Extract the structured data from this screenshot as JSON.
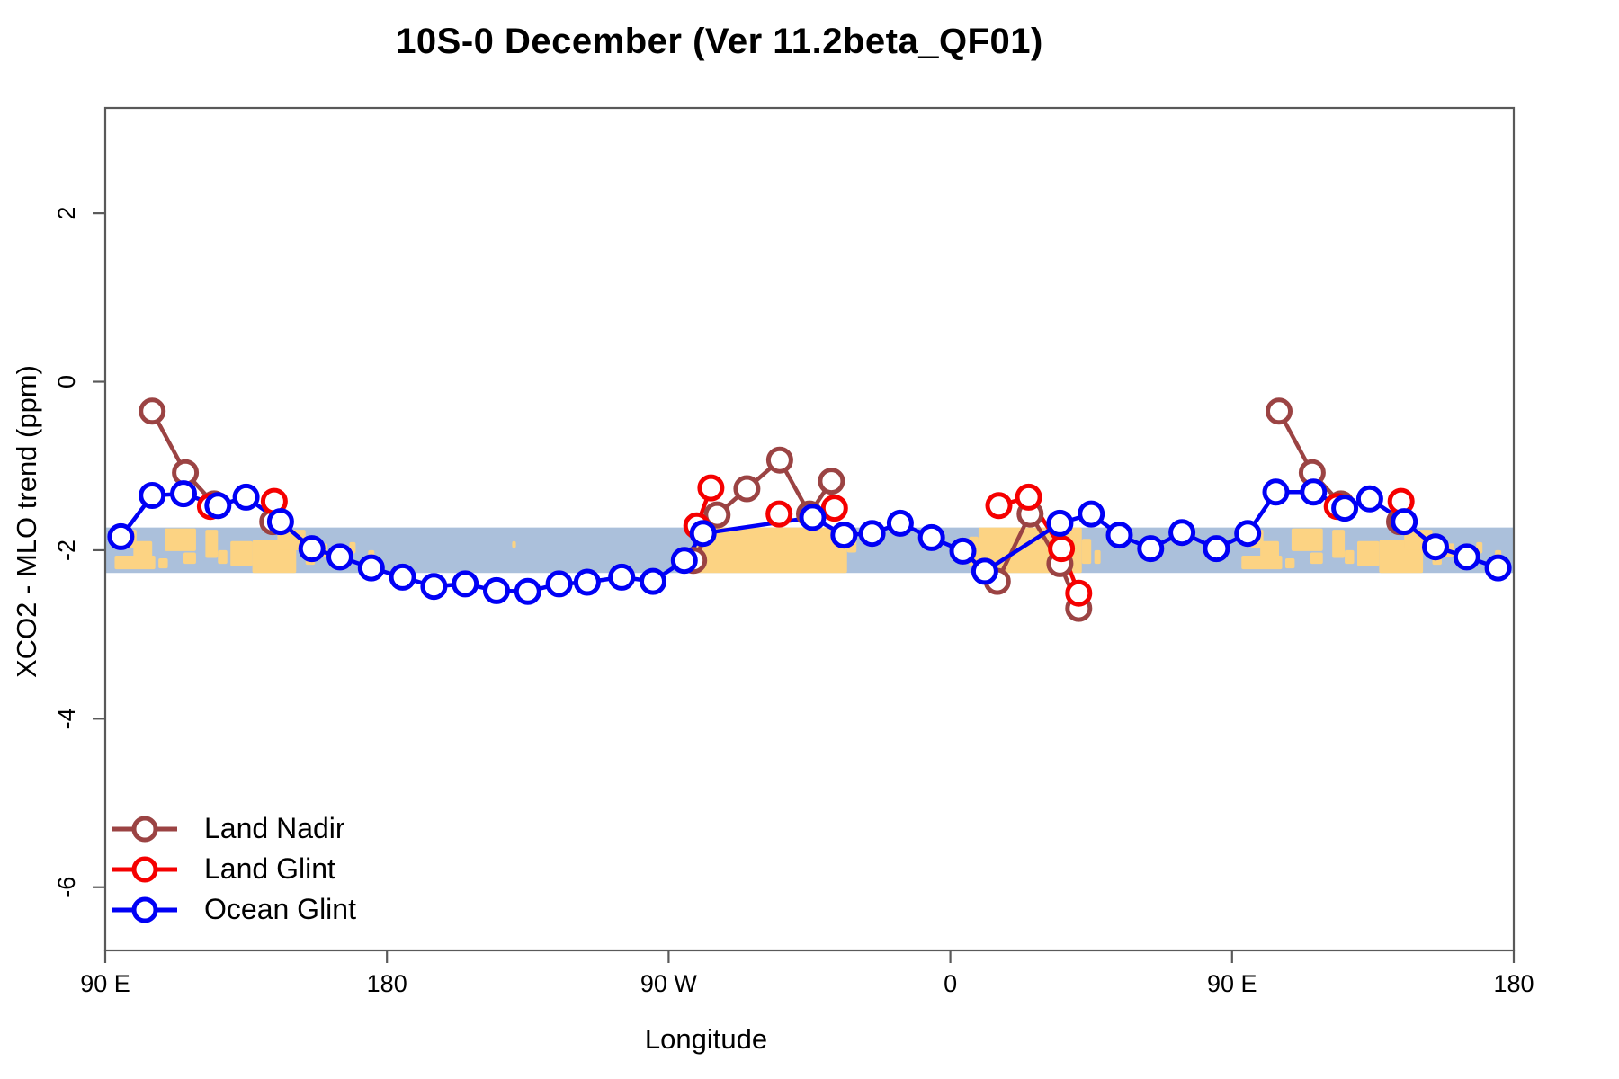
{
  "title": "10S-0 December (Ver 11.2beta_QF01)",
  "legend": {
    "items": [
      "Land Nadir",
      "Land Glint",
      "Ocean Glint"
    ]
  },
  "chart_data": {
    "type": "line",
    "title": "10S-0 December (Ver 11.2beta_QF01)",
    "xlabel": "Longitude",
    "ylabel": "XCO2 - MLO trend (ppm)",
    "x_axis_note": "degrees eastward from 90E, wrapping the globe (0-450)",
    "xlim": [
      0,
      450
    ],
    "ylim": [
      -6.75,
      3.25
    ],
    "grid": false,
    "legend_position": "bottom-left-inside",
    "x_ticks": [
      {
        "pos": 0,
        "label": "90 E"
      },
      {
        "pos": 90,
        "label": "180"
      },
      {
        "pos": 180,
        "label": "90 W"
      },
      {
        "pos": 270,
        "label": "0"
      },
      {
        "pos": 360,
        "label": "90 E"
      },
      {
        "pos": 450,
        "label": "180"
      }
    ],
    "y_ticks": [
      {
        "pos": 2,
        "label": "2"
      },
      {
        "pos": 0,
        "label": "0"
      },
      {
        "pos": -2,
        "label": "-2"
      },
      {
        "pos": -4,
        "label": "-4"
      },
      {
        "pos": -6,
        "label": "-6"
      }
    ],
    "map_band": {
      "value_top": -1.73,
      "value_bottom": -2.27,
      "ocean_color": "#ABC0DB",
      "land_color": "#FCD383",
      "repeat_offset": 360,
      "patches": [
        {
          "x": 6,
          "w": 4,
          "yf": 0.05,
          "hf": 0.4,
          "r": 1
        },
        {
          "x": 9,
          "w": 6,
          "yf": 0.3,
          "hf": 0.45,
          "r": 1
        },
        {
          "x": 3,
          "w": 13,
          "yf": 0.62,
          "hf": 0.3,
          "r": 1
        },
        {
          "x": 17,
          "w": 3,
          "yf": 0.68,
          "hf": 0.22,
          "r": 1
        },
        {
          "x": 19,
          "w": 10,
          "yf": 0.02,
          "hf": 0.5,
          "r": 1
        },
        {
          "x": 25,
          "w": 4,
          "yf": 0.55,
          "hf": 0.25,
          "r": 1
        },
        {
          "x": 32,
          "w": 4,
          "yf": 0.05,
          "hf": 0.62,
          "r": 1
        },
        {
          "x": 36,
          "w": 3,
          "yf": 0.5,
          "hf": 0.3,
          "r": 1
        },
        {
          "x": 40,
          "w": 7,
          "yf": 0.3,
          "hf": 0.55,
          "r": 1
        },
        {
          "x": 47,
          "w": 14,
          "yf": 0.28,
          "hf": 0.72,
          "r": 1
        },
        {
          "x": 55,
          "w": 9,
          "yf": 0.05,
          "hf": 0.45,
          "r": 1
        },
        {
          "x": 64,
          "w": 3,
          "yf": 0.5,
          "hf": 0.32,
          "r": 1
        },
        {
          "x": 68,
          "w": 3,
          "yf": 0.35,
          "hf": 0.3,
          "r": 1
        },
        {
          "x": 72,
          "w": 2,
          "yf": 0.55,
          "hf": 0.25,
          "r": 1
        },
        {
          "x": 78,
          "w": 2,
          "yf": 0.32,
          "hf": 0.25,
          "r": 1
        },
        {
          "x": 84,
          "w": 2,
          "yf": 0.5,
          "hf": 0.2,
          "r": 1
        },
        {
          "x": 130,
          "w": 1.2,
          "yf": 0.3,
          "hf": 0.15,
          "r": 0
        },
        {
          "x": 189,
          "w": 48,
          "yf": 0,
          "hf": 1,
          "r": 0
        },
        {
          "x": 237,
          "w": 3,
          "yf": 0,
          "hf": 0.55,
          "r": 0
        },
        {
          "x": 276,
          "w": 3,
          "yf": 0.2,
          "hf": 0.65,
          "r": 0
        },
        {
          "x": 279,
          "w": 33,
          "yf": 0,
          "hf": 1,
          "r": 0
        },
        {
          "x": 312,
          "w": 3,
          "yf": 0.25,
          "hf": 0.55,
          "r": 0
        },
        {
          "x": 316,
          "w": 2,
          "yf": 0.5,
          "hf": 0.3,
          "r": 0
        }
      ]
    },
    "series": [
      {
        "name": "Land Nadir",
        "color": "#9B4343",
        "marker": "open-circle",
        "segments": [
          [
            [
              15,
              -0.35
            ],
            [
              25.6,
              -1.08
            ],
            [
              34.8,
              -1.45
            ]
          ],
          [
            [
              53.5,
              -1.66
            ]
          ],
          [
            [
              188,
              -2.12
            ],
            [
              195.5,
              -1.58
            ],
            [
              205,
              -1.27
            ],
            [
              215.5,
              -0.93
            ],
            [
              225,
              -1.57
            ],
            [
              232,
              -1.18
            ]
          ],
          [
            [
              285,
              -2.37
            ],
            [
              295.5,
              -1.57
            ],
            [
              305,
              -2.16
            ],
            [
              311,
              -2.69
            ]
          ],
          [
            [
              375,
              -0.35
            ],
            [
              385.6,
              -1.08
            ],
            [
              394.8,
              -1.45
            ]
          ],
          [
            [
              413.5,
              -1.66
            ]
          ]
        ]
      },
      {
        "name": "Land Glint",
        "color": "#F50000",
        "marker": "open-circle",
        "segments": [
          [
            [
              33.6,
              -1.48
            ]
          ],
          [
            [
              54,
              -1.42
            ]
          ],
          [
            [
              189,
              -1.71
            ],
            [
              193.5,
              -1.26
            ]
          ],
          [
            [
              215.3,
              -1.57
            ]
          ],
          [
            [
              233,
              -1.5
            ]
          ],
          [
            [
              285.5,
              -1.47
            ],
            [
              295,
              -1.37
            ],
            [
              305.5,
              -1.98
            ],
            [
              311,
              -2.51
            ]
          ],
          [
            [
              393.6,
              -1.48
            ]
          ],
          [
            [
              414,
              -1.42
            ]
          ]
        ]
      },
      {
        "name": "Ocean Glint",
        "color": "#0000F5",
        "marker": "open-circle",
        "segments": [
          [
            [
              5,
              -1.84
            ],
            [
              15,
              -1.35
            ],
            [
              25,
              -1.33
            ],
            [
              36,
              -1.47
            ],
            [
              45,
              -1.37
            ],
            [
              56,
              -1.66
            ],
            [
              66,
              -1.98
            ],
            [
              75,
              -2.08
            ],
            [
              85,
              -2.21
            ],
            [
              95,
              -2.32
            ],
            [
              105,
              -2.43
            ],
            [
              115,
              -2.4
            ],
            [
              125,
              -2.48
            ],
            [
              135,
              -2.49
            ],
            [
              145,
              -2.4
            ],
            [
              154,
              -2.38
            ],
            [
              165,
              -2.32
            ],
            [
              175,
              -2.37
            ],
            [
              185,
              -2.12
            ],
            [
              191,
              -1.8
            ],
            [
              226,
              -1.61
            ],
            [
              236,
              -1.82
            ],
            [
              245,
              -1.8
            ],
            [
              254,
              -1.68
            ],
            [
              264,
              -1.85
            ],
            [
              274,
              -2.01
            ],
            [
              281,
              -2.25
            ],
            [
              305,
              -1.68
            ],
            [
              315,
              -1.57
            ],
            [
              324,
              -1.82
            ],
            [
              334,
              -1.98
            ],
            [
              344,
              -1.79
            ],
            [
              355,
              -1.98
            ],
            [
              365,
              -1.8
            ],
            [
              374,
              -1.31
            ],
            [
              386,
              -1.31
            ],
            [
              396,
              -1.5
            ],
            [
              404,
              -1.39
            ],
            [
              415,
              -1.66
            ],
            [
              425,
              -1.96
            ],
            [
              435,
              -2.08
            ],
            [
              445,
              -2.21
            ]
          ]
        ]
      }
    ]
  }
}
